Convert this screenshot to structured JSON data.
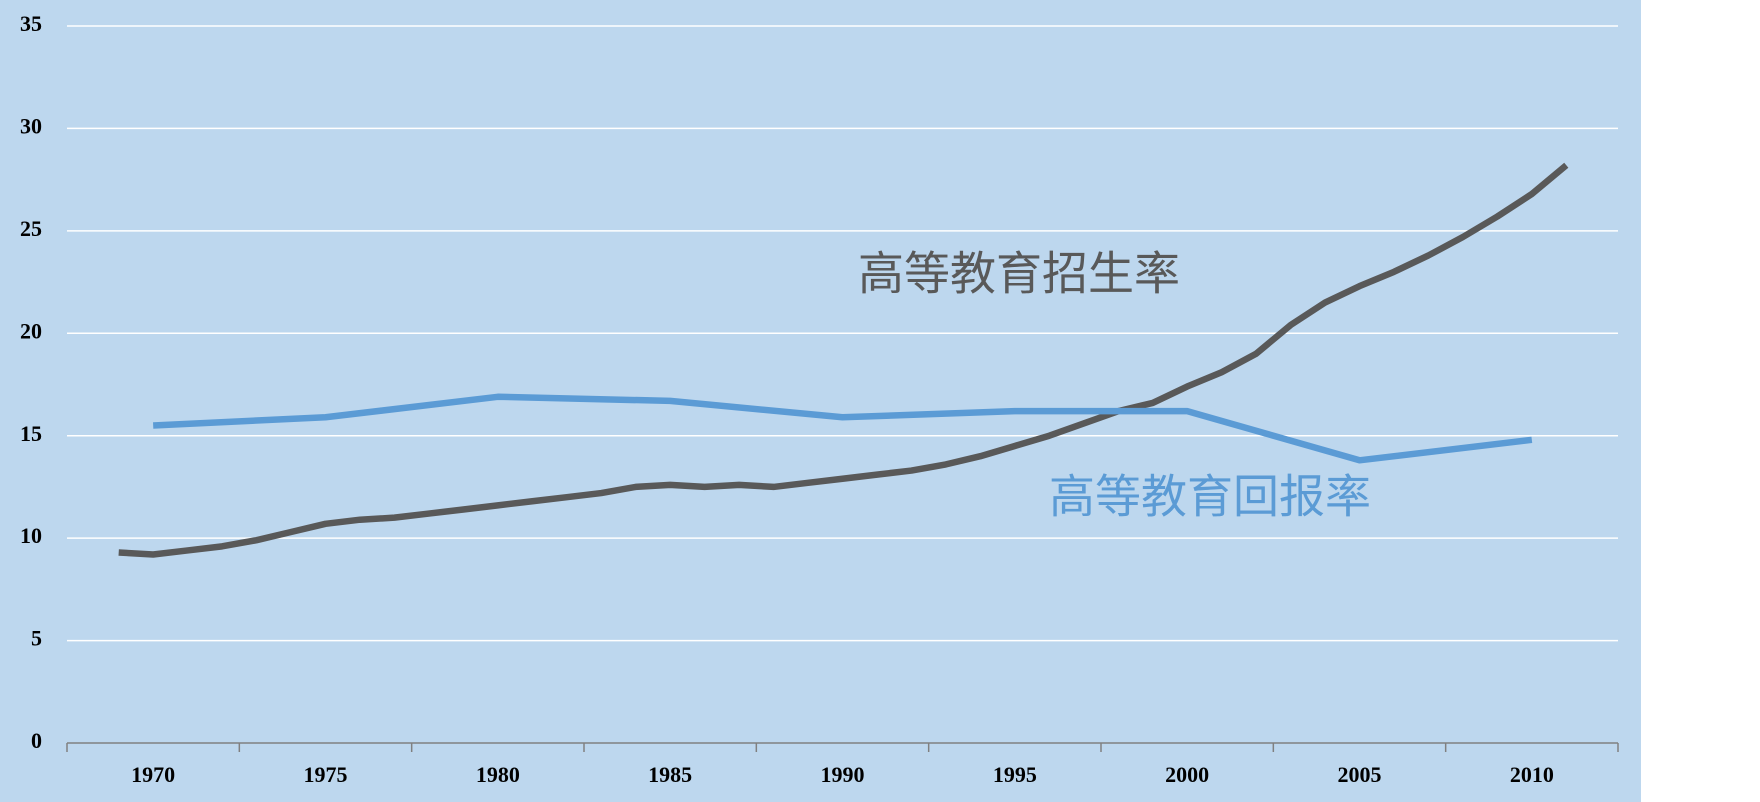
{
  "chart_data": {
    "type": "line",
    "xlim": [
      1967.5,
      2012.5
    ],
    "xticks": [
      1970,
      1975,
      1980,
      1985,
      1990,
      1995,
      2000,
      2005,
      2010
    ],
    "ylim": [
      0,
      35
    ],
    "yticks": [
      0,
      5,
      10,
      15,
      20,
      25,
      30,
      35
    ],
    "grid": true,
    "series": [
      {
        "name": "高等教育招生率",
        "color": "#595959",
        "x": [
          1969,
          1970,
          1971,
          1972,
          1973,
          1974,
          1975,
          1976,
          1977,
          1978,
          1979,
          1980,
          1981,
          1982,
          1983,
          1984,
          1985,
          1986,
          1987,
          1988,
          1989,
          1990,
          1991,
          1992,
          1993,
          1994,
          1995,
          1996,
          1997,
          1998,
          1999,
          2000,
          2001,
          2002,
          2003,
          2004,
          2005,
          2006,
          2007,
          2008,
          2009,
          2010,
          2011
        ],
        "values": [
          9.3,
          9.2,
          9.4,
          9.6,
          9.9,
          10.3,
          10.7,
          10.9,
          11.0,
          11.2,
          11.4,
          11.6,
          11.8,
          12.0,
          12.2,
          12.5,
          12.6,
          12.5,
          12.6,
          12.5,
          12.7,
          12.9,
          13.1,
          13.3,
          13.6,
          14.0,
          14.5,
          15.0,
          15.6,
          16.2,
          16.6,
          17.4,
          18.1,
          19.0,
          20.4,
          21.5,
          22.3,
          23.0,
          23.8,
          24.7,
          25.7,
          26.8,
          28.2
        ]
      },
      {
        "name": "高等教育回报率",
        "color": "#5b9bd5",
        "x": [
          1970,
          1975,
          1980,
          1985,
          1990,
          1995,
          2000,
          2005,
          2010
        ],
        "values": [
          15.5,
          15.9,
          16.9,
          16.7,
          15.9,
          16.2,
          16.2,
          13.8,
          14.8
        ]
      }
    ]
  }
}
